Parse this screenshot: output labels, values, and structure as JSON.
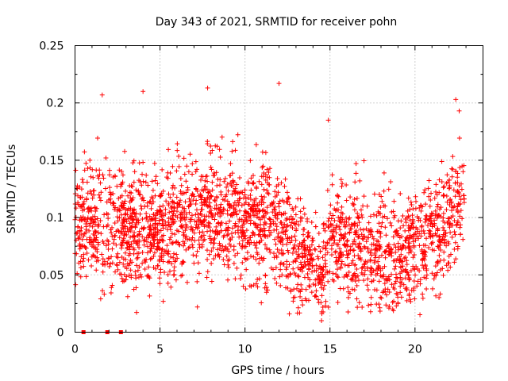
{
  "chart_data": {
    "type": "scatter",
    "title": "Day 343 of 2021, SRMTID for receiver pohn",
    "xlabel": "GPS time / hours",
    "ylabel": "SRMTID / TECUs",
    "xlim": [
      0,
      24
    ],
    "ylim": [
      0,
      0.25
    ],
    "x_ticks": [
      0,
      5,
      10,
      15,
      20
    ],
    "y_ticks": [
      0,
      0.05,
      0.1,
      0.15,
      0.2,
      0.25
    ],
    "x_tick_labels": [
      "0",
      "5",
      "10",
      "15",
      "20"
    ],
    "y_tick_labels": [
      "0",
      "0.05",
      "0.1",
      "0.15",
      "0.2",
      "0.25"
    ],
    "grid": true,
    "marker": "+",
    "color": "#ff0000",
    "series": [
      {
        "name": "SRMTID",
        "approximate_points": 2600,
        "x_range": [
          0,
          22.9
        ],
        "trend": [
          [
            0.0,
            0.095
          ],
          [
            1.0,
            0.092
          ],
          [
            2.0,
            0.095
          ],
          [
            3.0,
            0.088
          ],
          [
            4.0,
            0.09
          ],
          [
            5.0,
            0.092
          ],
          [
            6.0,
            0.1
          ],
          [
            7.0,
            0.1
          ],
          [
            8.0,
            0.11
          ],
          [
            9.0,
            0.105
          ],
          [
            10.0,
            0.1
          ],
          [
            11.0,
            0.098
          ],
          [
            12.0,
            0.092
          ],
          [
            13.0,
            0.075
          ],
          [
            14.0,
            0.065
          ],
          [
            14.5,
            0.05
          ],
          [
            15.0,
            0.085
          ],
          [
            16.0,
            0.075
          ],
          [
            17.0,
            0.07
          ],
          [
            18.0,
            0.065
          ],
          [
            19.0,
            0.06
          ],
          [
            20.0,
            0.075
          ],
          [
            21.0,
            0.085
          ],
          [
            22.0,
            0.1
          ],
          [
            22.9,
            0.115
          ]
        ],
        "highlighted_points": [
          [
            7.8,
            0.213
          ],
          [
            12.0,
            0.217
          ],
          [
            4.0,
            0.21
          ],
          [
            1.6,
            0.207
          ],
          [
            22.4,
            0.203
          ],
          [
            14.9,
            0.185
          ],
          [
            22.6,
            0.193
          ],
          [
            14.5,
            0.01
          ],
          [
            7.2,
            0.022
          ],
          [
            3.1,
            0.031
          ]
        ]
      },
      {
        "name": "zero markers",
        "style": "square",
        "x": [
          0.5,
          1.9,
          2.7
        ],
        "y": [
          0,
          0,
          0
        ]
      }
    ]
  }
}
